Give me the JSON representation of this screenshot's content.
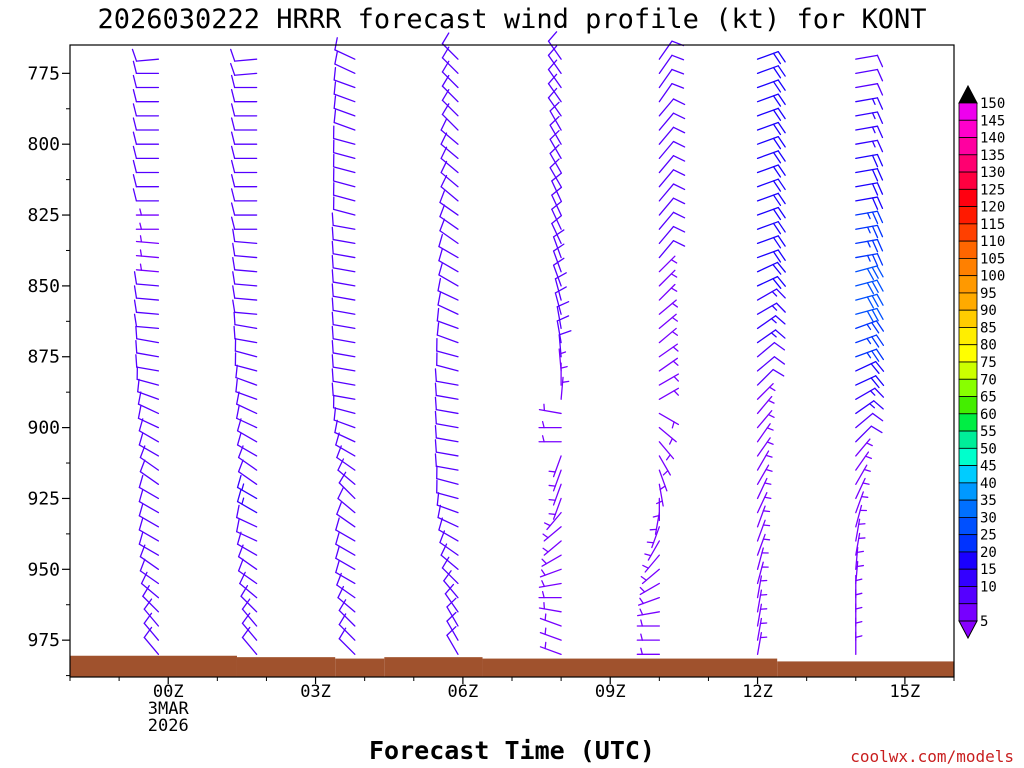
{
  "chart_data": {
    "type": "wind-barb-profile",
    "title": "2026030222 HRRR forecast wind profile (kt) for KONT",
    "xlabel": "Forecast Time (UTC)",
    "credit": "coolwx.com/models",
    "x_ticks": [
      {
        "hour": 0,
        "lines": [
          "00Z",
          "3MAR",
          "2026"
        ]
      },
      {
        "hour": 3,
        "lines": [
          "03Z"
        ]
      },
      {
        "hour": 6,
        "lines": [
          "06Z"
        ]
      },
      {
        "hour": 9,
        "lines": [
          "09Z"
        ]
      },
      {
        "hour": 12,
        "lines": [
          "12Z"
        ]
      },
      {
        "hour": 15,
        "lines": [
          "15Z"
        ]
      }
    ],
    "y_ticks": [
      775,
      800,
      825,
      850,
      875,
      900,
      925,
      950,
      975
    ],
    "ylim_mb": [
      765,
      988
    ],
    "xlim_hours": [
      -2,
      16
    ],
    "levels_mb": [
      765,
      770,
      775,
      780,
      785,
      790,
      795,
      800,
      805,
      810,
      815,
      820,
      825,
      830,
      835,
      840,
      845,
      850,
      855,
      860,
      865,
      870,
      875,
      880,
      885,
      890,
      895,
      900,
      905,
      910,
      915,
      920,
      925,
      930,
      935,
      940,
      945,
      950,
      955,
      960,
      965,
      970,
      975,
      980
    ],
    "profiles": [
      {
        "hour": -0.2,
        "base_mb": 980,
        "dir": [
          265,
          265,
          270,
          270,
          270,
          270,
          270,
          270,
          270,
          270,
          270,
          270,
          270,
          270,
          275,
          275,
          275,
          275,
          275,
          275,
          275,
          280,
          280,
          280,
          285,
          290,
          295,
          295,
          300,
          300,
          305,
          305,
          300,
          300,
          300,
          300,
          300,
          305,
          305,
          310,
          315,
          320,
          320,
          320
        ],
        "spd": [
          10,
          10,
          10,
          10,
          10,
          10,
          10,
          10,
          10,
          10,
          10,
          10,
          5,
          5,
          5,
          5,
          5,
          10,
          10,
          10,
          10,
          10,
          10,
          10,
          10,
          10,
          10,
          10,
          10,
          10,
          10,
          10,
          10,
          10,
          10,
          10,
          10,
          10,
          10,
          10,
          10,
          10,
          10,
          10
        ]
      },
      {
        "hour": 1.8,
        "base_mb": 980,
        "dir": [
          265,
          265,
          265,
          270,
          270,
          270,
          270,
          270,
          270,
          270,
          270,
          270,
          270,
          270,
          275,
          275,
          275,
          275,
          275,
          275,
          280,
          280,
          285,
          285,
          290,
          290,
          295,
          295,
          300,
          300,
          305,
          305,
          300,
          300,
          295,
          295,
          300,
          305,
          305,
          310,
          315,
          320,
          320,
          320
        ],
        "spd": [
          10,
          10,
          10,
          10,
          10,
          10,
          10,
          10,
          10,
          10,
          10,
          10,
          10,
          10,
          10,
          10,
          10,
          10,
          10,
          10,
          10,
          10,
          10,
          10,
          10,
          10,
          10,
          10,
          10,
          10,
          10,
          10,
          15,
          15,
          10,
          10,
          10,
          10,
          10,
          10,
          10,
          10,
          10,
          10
        ]
      },
      {
        "hour": 3.8,
        "base_mb": 981,
        "dir": [
          295,
          295,
          295,
          290,
          290,
          290,
          290,
          285,
          285,
          285,
          285,
          285,
          285,
          280,
          280,
          280,
          280,
          280,
          280,
          280,
          280,
          280,
          280,
          280,
          280,
          280,
          285,
          290,
          295,
          300,
          305,
          310,
          315,
          310,
          305,
          300,
          300,
          300,
          300,
          305,
          310,
          315,
          315,
          315
        ],
        "spd": [
          10,
          10,
          10,
          10,
          10,
          10,
          10,
          10,
          10,
          10,
          10,
          10,
          10,
          10,
          10,
          10,
          10,
          10,
          10,
          10,
          10,
          10,
          10,
          10,
          10,
          10,
          10,
          10,
          10,
          10,
          10,
          10,
          10,
          10,
          10,
          10,
          10,
          10,
          10,
          10,
          10,
          10,
          10,
          10
        ]
      },
      {
        "hour": 5.9,
        "base_mb": 980,
        "dir": [
          315,
          315,
          315,
          315,
          315,
          315,
          315,
          310,
          310,
          310,
          310,
          310,
          305,
          305,
          305,
          300,
          300,
          300,
          295,
          295,
          290,
          290,
          285,
          285,
          280,
          280,
          280,
          280,
          280,
          280,
          280,
          285,
          285,
          290,
          295,
          300,
          305,
          310,
          315,
          320,
          325,
          330,
          330,
          330
        ],
        "spd": [
          10,
          10,
          10,
          10,
          10,
          10,
          10,
          10,
          10,
          10,
          10,
          10,
          10,
          10,
          10,
          10,
          10,
          10,
          10,
          10,
          10,
          10,
          10,
          10,
          10,
          10,
          10,
          10,
          10,
          10,
          10,
          10,
          10,
          10,
          10,
          10,
          10,
          10,
          10,
          10,
          10,
          10,
          10,
          10
        ]
      },
      {
        "hour": 8.0,
        "base_mb": 981,
        "dir": [
          325,
          325,
          325,
          325,
          325,
          325,
          330,
          330,
          330,
          330,
          330,
          335,
          335,
          335,
          335,
          340,
          340,
          340,
          345,
          345,
          350,
          350,
          355,
          355,
          0,
          5,
          280,
          270,
          270,
          200,
          200,
          200,
          200,
          220,
          230,
          230,
          240,
          250,
          260,
          270,
          280,
          290,
          290,
          290
        ],
        "spd": [
          10,
          10,
          10,
          10,
          10,
          10,
          10,
          10,
          10,
          10,
          10,
          10,
          10,
          10,
          10,
          10,
          10,
          10,
          10,
          10,
          10,
          10,
          10,
          5,
          5,
          5,
          5,
          5,
          5,
          5,
          5,
          5,
          5,
          5,
          5,
          5,
          5,
          5,
          5,
          5,
          5,
          5,
          5,
          5
        ]
      },
      {
        "hour": 10.0,
        "base_mb": 981,
        "dir": [
          35,
          35,
          35,
          35,
          35,
          40,
          40,
          40,
          40,
          40,
          40,
          40,
          40,
          40,
          40,
          40,
          45,
          45,
          45,
          50,
          50,
          50,
          55,
          55,
          60,
          60,
          120,
          130,
          140,
          150,
          160,
          170,
          180,
          190,
          200,
          210,
          220,
          230,
          240,
          250,
          260,
          270,
          270,
          270
        ],
        "spd": [
          10,
          10,
          10,
          10,
          10,
          10,
          10,
          10,
          10,
          10,
          10,
          10,
          10,
          10,
          10,
          10,
          5,
          5,
          5,
          5,
          5,
          5,
          5,
          5,
          5,
          5,
          5,
          5,
          5,
          5,
          5,
          5,
          5,
          5,
          5,
          5,
          5,
          5,
          5,
          5,
          5,
          5,
          5,
          5
        ]
      },
      {
        "hour": 12.0,
        "base_mb": 981,
        "dir": [
          70,
          70,
          70,
          70,
          70,
          70,
          70,
          70,
          70,
          70,
          70,
          70,
          70,
          70,
          70,
          70,
          65,
          65,
          60,
          60,
          55,
          55,
          50,
          50,
          45,
          45,
          40,
          40,
          35,
          35,
          30,
          30,
          25,
          25,
          20,
          20,
          20,
          15,
          15,
          10,
          10,
          10,
          10,
          10
        ],
        "spd": [
          20,
          20,
          20,
          20,
          20,
          20,
          20,
          20,
          20,
          20,
          20,
          20,
          20,
          20,
          20,
          20,
          20,
          20,
          15,
          15,
          15,
          15,
          10,
          10,
          10,
          5,
          5,
          5,
          5,
          5,
          5,
          5,
          5,
          5,
          5,
          5,
          5,
          5,
          5,
          5,
          5,
          5,
          5,
          5
        ]
      },
      {
        "hour": 14.0,
        "base_mb": 982,
        "dir": [
          80,
          80,
          80,
          80,
          80,
          80,
          80,
          80,
          80,
          80,
          80,
          80,
          80,
          80,
          80,
          80,
          75,
          75,
          75,
          75,
          70,
          70,
          70,
          65,
          65,
          60,
          55,
          50,
          45,
          40,
          35,
          30,
          25,
          20,
          15,
          10,
          10,
          5,
          5,
          0,
          0,
          0,
          0,
          0
        ],
        "spd": [
          10,
          10,
          10,
          10,
          15,
          15,
          15,
          15,
          20,
          20,
          20,
          20,
          25,
          25,
          25,
          25,
          30,
          30,
          30,
          30,
          25,
          25,
          25,
          20,
          20,
          15,
          15,
          10,
          10,
          5,
          5,
          5,
          5,
          5,
          5,
          5,
          5,
          5,
          5,
          5,
          5,
          5,
          5,
          5
        ]
      }
    ],
    "colorbar": {
      "labels": [
        150,
        145,
        140,
        135,
        130,
        125,
        120,
        115,
        110,
        105,
        100,
        95,
        90,
        85,
        80,
        75,
        70,
        65,
        60,
        55,
        50,
        45,
        40,
        35,
        30,
        25,
        20,
        15,
        10,
        5
      ],
      "colors": [
        "#ee00ee",
        "#ff00cc",
        "#ff00a0",
        "#ff0070",
        "#ff0040",
        "#ff0010",
        "#ff1a00",
        "#ff4000",
        "#ff6600",
        "#ff8000",
        "#ff9900",
        "#ffaa00",
        "#ffcc00",
        "#ffee00",
        "#ffff00",
        "#ccff00",
        "#88ff00",
        "#44ee00",
        "#00ee44",
        "#00ee99",
        "#00ffcc",
        "#00ccff",
        "#0099ff",
        "#0070ff",
        "#0050ff",
        "#0033ff",
        "#1a00ff",
        "#3300ff",
        "#5500ff",
        "#7700ff"
      ],
      "top_arrow_color": "#000000",
      "bottom_arrow_color": "#8800ff"
    },
    "terrain": [
      {
        "from": -2,
        "to": 1.4,
        "base_mb": 980.5
      },
      {
        "from": 1.4,
        "to": 3.4,
        "base_mb": 981
      },
      {
        "from": 3.4,
        "to": 4.4,
        "base_mb": 981.5
      },
      {
        "from": 4.4,
        "to": 6.4,
        "base_mb": 981
      },
      {
        "from": 6.4,
        "to": 12.4,
        "base_mb": 981.5
      },
      {
        "from": 12.4,
        "to": 16,
        "base_mb": 982.5
      }
    ],
    "terrain_color": "#a0522d"
  }
}
